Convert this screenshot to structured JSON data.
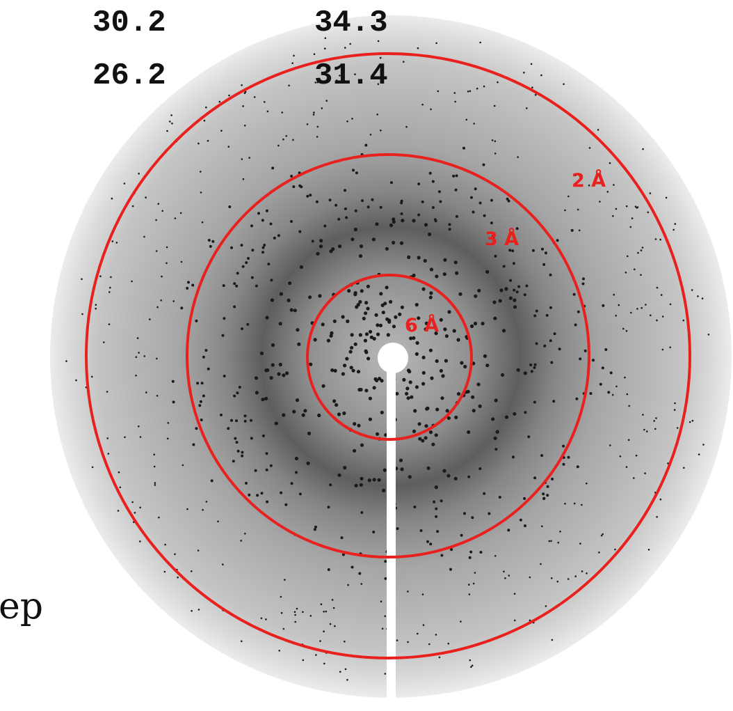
{
  "overlay": {
    "rows": [
      [
        "30.2",
        "34.3"
      ],
      [
        "26.2",
        "31.4"
      ]
    ]
  },
  "rings": [
    {
      "label": "2 Å"
    },
    {
      "label": "3 Å"
    },
    {
      "label": "6 Å"
    }
  ],
  "fragment": "ep"
}
